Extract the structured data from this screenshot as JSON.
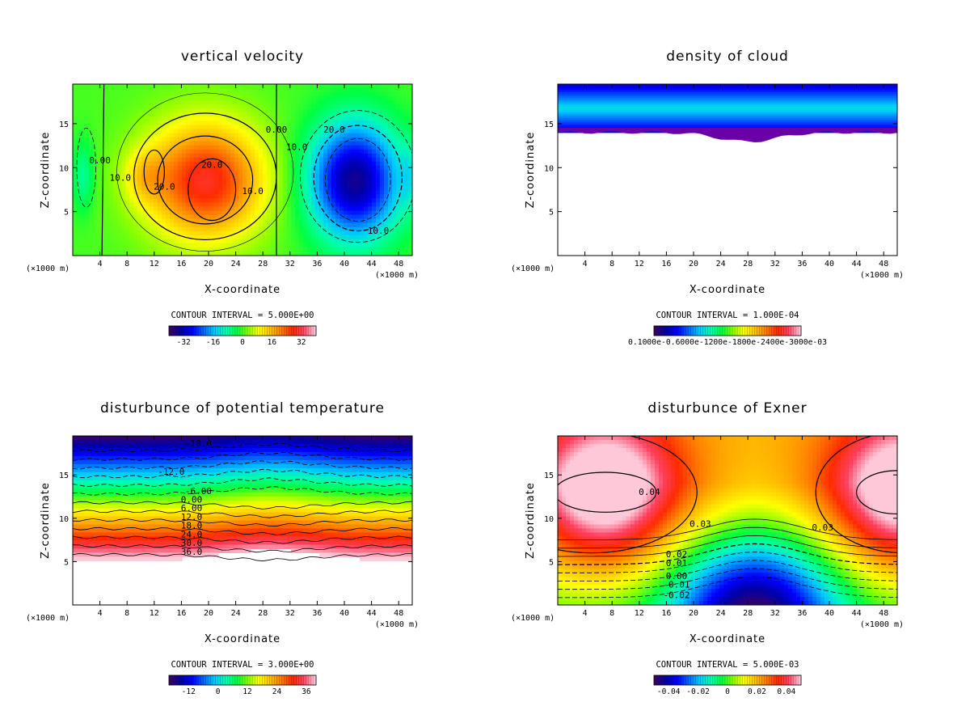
{
  "colormap": [
    "#3a0066",
    "#0000a8",
    "#0000ff",
    "#0066ff",
    "#00c8ff",
    "#00ffb0",
    "#00ff40",
    "#8cff00",
    "#ffff00",
    "#ffbf00",
    "#ff7a00",
    "#ff2a00",
    "#ff4060",
    "#ffc8d8"
  ],
  "common": {
    "xlabel": "X-coordinate",
    "ylabel": "Z-coordinate",
    "x_unit": "(×1000 m)",
    "z_unit_left": "(×1000 m)",
    "x_ticks": [
      4,
      8,
      12,
      16,
      20,
      24,
      28,
      32,
      36,
      40,
      44,
      48
    ],
    "z_ticks": [
      5,
      10,
      15
    ],
    "xlim": [
      0,
      50
    ],
    "zlim": [
      0,
      19.5
    ]
  },
  "chart_data": [
    {
      "type": "heatmap",
      "id": "w",
      "title": "vertical velocity",
      "contour_interval": "CONTOUR INTERVAL = 5.000E+00",
      "colorbar": {
        "range": [
          -40,
          40
        ],
        "ticks": [
          "-32",
          "-16",
          "0",
          "16",
          "32"
        ],
        "tick_values": [
          -32,
          -16,
          0,
          16,
          32
        ]
      },
      "field_desc": "updraft cell centred near x=20 (max ~30), downdraft cell centred near x=42 (min ~-35)",
      "contour_labels": [
        {
          "text": "20.0",
          "x": 20.5,
          "z": 10.0
        },
        {
          "text": "20.0",
          "x": 13.5,
          "z": 7.5
        },
        {
          "text": "10.0",
          "x": 7.0,
          "z": 8.5
        },
        {
          "text": "10.0",
          "x": 26.5,
          "z": 7.0
        },
        {
          "text": "0.00",
          "x": 30.0,
          "z": 14.0
        },
        {
          "text": "0.00",
          "x": 4.0,
          "z": 10.5
        },
        {
          "text": "10.0",
          "x": 33.0,
          "z": 12.0
        },
        {
          "text": "20.0",
          "x": 38.5,
          "z": 14.0
        },
        {
          "text": "10.0",
          "x": 45.0,
          "z": 2.5
        }
      ]
    },
    {
      "type": "heatmap",
      "id": "qc",
      "title": "density of cloud",
      "contour_interval": "CONTOUR INTERVAL = 1.000E-04",
      "colorbar": {
        "range": [
          0,
          1
        ],
        "ticks": [
          "0.10000",
          "-0.60000E-04",
          "-0.18000E-03",
          "-0.24000E-03",
          "-0.30000E-03"
        ],
        "tick_values": [
          0.0,
          0.25,
          0.45,
          0.6,
          0.8
        ],
        "raw_label": "0.1000e-0.6000e-1200e-1800e-2400e-3000e-03"
      },
      "field_desc": "cloud layer from z~14 to top, blue above purple base; empty below"
    },
    {
      "type": "heatmap",
      "id": "theta",
      "title": "disturbunce of potential temperature",
      "contour_interval": "CONTOUR INTERVAL = 3.000E+00",
      "colorbar": {
        "range": [
          -20,
          40
        ],
        "ticks": [
          "-12",
          "0",
          "12",
          "24",
          "36"
        ],
        "tick_values": [
          -12,
          0,
          12,
          24,
          36
        ]
      },
      "field_desc": "horizontal layering, strongly positive near z~6, negative near z~17-19",
      "contour_labels": [
        {
          "text": "-18.0",
          "x": 18.5,
          "z": 18.3
        },
        {
          "text": "-12.0",
          "x": 14.5,
          "z": 15.0
        },
        {
          "text": "-6.00",
          "x": 18.5,
          "z": 12.8
        },
        {
          "text": "0.00",
          "x": 17.5,
          "z": 11.8
        },
        {
          "text": "6.00",
          "x": 17.5,
          "z": 10.8
        },
        {
          "text": "12.0",
          "x": 17.5,
          "z": 9.8
        },
        {
          "text": "18.0",
          "x": 17.5,
          "z": 8.8
        },
        {
          "text": "24.0",
          "x": 17.5,
          "z": 7.8
        },
        {
          "text": "30.0",
          "x": 17.5,
          "z": 6.8
        },
        {
          "text": "36.0",
          "x": 17.5,
          "z": 5.8
        }
      ]
    },
    {
      "type": "heatmap",
      "id": "exner",
      "title": "disturbunce of Exner",
      "contour_interval": "CONTOUR INTERVAL = 5.000E-03",
      "colorbar": {
        "range": [
          -0.05,
          0.05
        ],
        "ticks": [
          "-0.04",
          "-0.02",
          "0",
          "0.02",
          "0.04"
        ],
        "tick_values": [
          -0.04,
          -0.02,
          0,
          0.02,
          0.04
        ]
      },
      "field_desc": "positive highs near (x=8,z=13) and (x=50,z=13); negative low near (x=30,z=0)",
      "contour_labels": [
        {
          "text": "0.04",
          "x": 13.5,
          "z": 12.7
        },
        {
          "text": "0.03",
          "x": 21.0,
          "z": 9.0
        },
        {
          "text": "0.03",
          "x": 39.0,
          "z": 8.6
        },
        {
          "text": "0.02",
          "x": 17.5,
          "z": 5.5
        },
        {
          "text": "0.01",
          "x": 17.5,
          "z": 4.5
        },
        {
          "text": "0.00",
          "x": 17.5,
          "z": 3.0
        },
        {
          "text": "-0.01",
          "x": 17.5,
          "z": 2.0
        },
        {
          "text": "-0.02",
          "x": 17.5,
          "z": 0.8
        }
      ]
    }
  ]
}
